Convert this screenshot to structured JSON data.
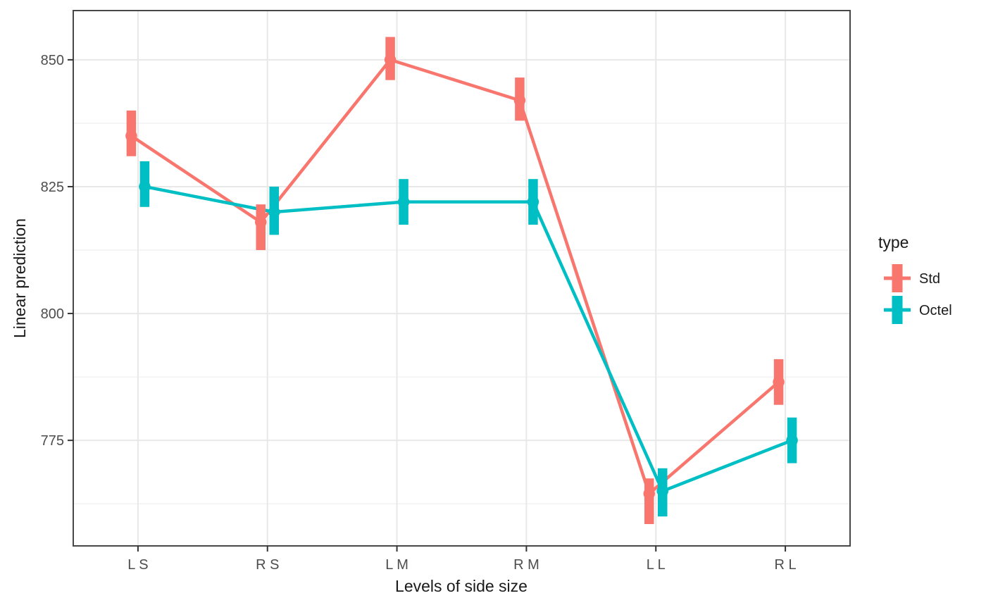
{
  "chart_data": {
    "type": "pointrange-line",
    "title": "",
    "xlabel": "Levels of side size",
    "ylabel": "Linear prediction",
    "categories": [
      "L S",
      "R S",
      "L M",
      "R M",
      "L L",
      "R L"
    ],
    "y_ticks": [
      775,
      800,
      825,
      850
    ],
    "y_minor_step": 12.5,
    "ylim": [
      754.2,
      859.7
    ],
    "grid": {
      "major": true,
      "minor": true,
      "vertical_minor": false
    },
    "legend": {
      "title": "type",
      "position": "right",
      "entries": [
        "Std",
        "Octel"
      ]
    },
    "series": [
      {
        "name": "Std",
        "color": "#F8766D",
        "values": [
          {
            "category": "L S",
            "point": 835,
            "lo": 831,
            "hi": 840
          },
          {
            "category": "R S",
            "point": 818,
            "lo": 812.5,
            "hi": 821.5
          },
          {
            "category": "L M",
            "point": 850,
            "lo": 846,
            "hi": 854.5
          },
          {
            "category": "R M",
            "point": 842,
            "lo": 838,
            "hi": 846.5
          },
          {
            "category": "L L",
            "point": 764.5,
            "lo": 758.5,
            "hi": 767.5
          },
          {
            "category": "R L",
            "point": 786.5,
            "lo": 782,
            "hi": 791
          }
        ]
      },
      {
        "name": "Octel",
        "color": "#00BFC4",
        "values": [
          {
            "category": "L S",
            "point": 825,
            "lo": 821,
            "hi": 830
          },
          {
            "category": "R S",
            "point": 820,
            "lo": 815.5,
            "hi": 825
          },
          {
            "category": "L M",
            "point": 822,
            "lo": 817.5,
            "hi": 826.5
          },
          {
            "category": "R M",
            "point": 822,
            "lo": 817.5,
            "hi": 826.5
          },
          {
            "category": "L L",
            "point": 765,
            "lo": 760,
            "hi": 769.5
          },
          {
            "category": "R L",
            "point": 775,
            "lo": 770.5,
            "hi": 779.5
          }
        ]
      }
    ],
    "colors": {
      "background": "#FFFFFF",
      "grid_major": "#E8E8E8",
      "grid_minor": "#F3F3F3",
      "panel_border": "#474747",
      "tick": "#333333",
      "tick_label": "#4D4D4D",
      "axis_title": "#1A1A1A",
      "legend_text": "#1A1A1A"
    }
  }
}
